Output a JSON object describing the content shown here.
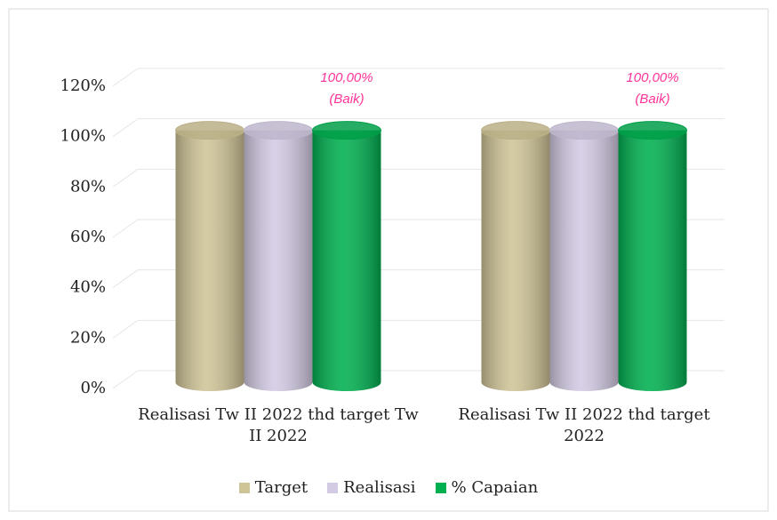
{
  "chart_data": {
    "type": "cylinder-bar",
    "categories": [
      "Realisasi Tw II 2022 thd target Tw II 2022",
      "Realisasi Tw II 2022 thd target 2022"
    ],
    "series": [
      {
        "name": "Target",
        "color": "#cfc497",
        "values": [
          100,
          100
        ]
      },
      {
        "name": "Realisasi",
        "color": "#d3cae3",
        "values": [
          100,
          100
        ]
      },
      {
        "name": "% Capaian",
        "color": "#00b050",
        "values": [
          100,
          100
        ],
        "value_labels": [
          "100,00%\n(Baik)",
          "100,00%\n(Baik)"
        ],
        "label_color": "#ff3399"
      }
    ],
    "ylim": [
      0,
      120
    ],
    "yticks": [
      {
        "value": 0,
        "label": "0%"
      },
      {
        "value": 20,
        "label": "20%"
      },
      {
        "value": 40,
        "label": "40%"
      },
      {
        "value": 60,
        "label": "60%"
      },
      {
        "value": 80,
        "label": "80%"
      },
      {
        "value": 100,
        "label": "100%"
      },
      {
        "value": 120,
        "label": "120%"
      }
    ],
    "grid": true,
    "legend": "bottom"
  }
}
